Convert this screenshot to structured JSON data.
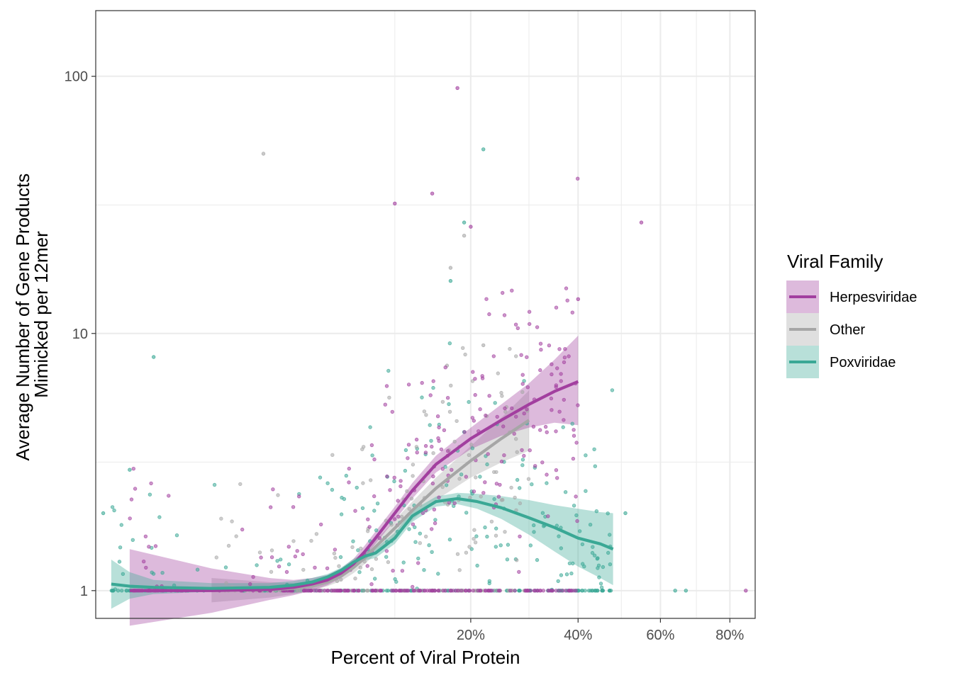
{
  "chart_data": {
    "type": "scatter",
    "xlabel": "Percent of Viral Protein",
    "ylabel_lines": [
      "Average Number of Gene Products",
      "Mimicked per 12mer"
    ],
    "x_scale": "sqrt",
    "y_scale": "log10",
    "xlim": [
      -0.04,
      0.88
    ],
    "ylim": [
      0.78,
      180
    ],
    "x_ticks": [
      {
        "value": 0.2,
        "label": "20%"
      },
      {
        "value": 0.4,
        "label": "40%"
      },
      {
        "value": 0.6,
        "label": "60%"
      },
      {
        "value": 0.8,
        "label": "80%"
      }
    ],
    "x_minor_gridlines": [
      0.1,
      0.3,
      0.5,
      0.7
    ],
    "y_ticks": [
      {
        "value": 1,
        "label": "1"
      },
      {
        "value": 10,
        "label": "10"
      },
      {
        "value": 100,
        "label": "100"
      }
    ],
    "y_minor_gridlines": [
      3.16,
      31.6
    ],
    "grid": true,
    "legend": {
      "title": "Viral Family",
      "position": "right",
      "entries": [
        "Herpesviridae",
        "Other",
        "Poxviridae"
      ]
    },
    "series_colors": {
      "Herpesviridae": "#a23f9f",
      "Other": "#a6a6a6",
      "Poxviridae": "#3aa895"
    },
    "series": [
      {
        "name": "Herpesviridae",
        "smooth": {
          "x": [
            -0.02,
            0.0,
            0.01,
            0.02,
            0.03,
            0.04,
            0.05,
            0.06,
            0.07,
            0.08,
            0.1,
            0.12,
            0.15,
            0.2,
            0.25,
            0.3,
            0.35,
            0.4
          ],
          "y": [
            1.0,
            1.0,
            1.01,
            1.03,
            1.06,
            1.1,
            1.17,
            1.27,
            1.42,
            1.6,
            2.0,
            2.45,
            3.1,
            3.9,
            4.6,
            5.3,
            5.95,
            6.5
          ],
          "lo": [
            0.73,
            0.82,
            0.92,
            0.96,
            1.0,
            1.05,
            1.12,
            1.21,
            1.35,
            1.52,
            1.88,
            2.28,
            2.88,
            3.55,
            4.0,
            4.3,
            4.5,
            4.4
          ],
          "hi": [
            1.45,
            1.22,
            1.12,
            1.1,
            1.12,
            1.15,
            1.22,
            1.33,
            1.5,
            1.7,
            2.12,
            2.62,
            3.35,
            4.3,
            5.3,
            6.4,
            7.9,
            9.8
          ]
        },
        "notable_points": [
          {
            "x": 0.18,
            "y": 90
          },
          {
            "x": 0.145,
            "y": 35
          },
          {
            "x": 0.1,
            "y": 32
          },
          {
            "x": 0.2,
            "y": 26
          },
          {
            "x": 0.4,
            "y": 13.6
          },
          {
            "x": 0.55,
            "y": 27
          },
          {
            "x": 0.85,
            "y": 1.0
          }
        ]
      },
      {
        "name": "Other",
        "smooth": {
          "x": [
            0.0,
            0.01,
            0.02,
            0.03,
            0.04,
            0.05,
            0.06,
            0.07,
            0.08,
            0.1,
            0.12,
            0.15,
            0.2,
            0.25,
            0.3
          ],
          "y": [
            1.0,
            1.01,
            1.02,
            1.04,
            1.08,
            1.14,
            1.23,
            1.34,
            1.48,
            1.75,
            2.05,
            2.5,
            3.2,
            3.9,
            4.6
          ],
          "lo": [
            0.9,
            0.94,
            0.97,
            1.0,
            1.04,
            1.09,
            1.17,
            1.27,
            1.39,
            1.62,
            1.88,
            2.25,
            2.75,
            3.15,
            3.5
          ],
          "hi": [
            1.12,
            1.08,
            1.07,
            1.09,
            1.13,
            1.19,
            1.3,
            1.42,
            1.57,
            1.88,
            2.22,
            2.75,
            3.65,
            4.7,
            6.0
          ]
        },
        "notable_points": [
          {
            "x": 0.008,
            "y": 50
          },
          {
            "x": 0.19,
            "y": 24
          },
          {
            "x": 0.17,
            "y": 18
          },
          {
            "x": 0.22,
            "y": 9
          },
          {
            "x": 0.165,
            "y": 7.5
          }
        ]
      },
      {
        "name": "Poxviridae",
        "smooth": {
          "x": [
            -0.03,
            -0.02,
            -0.01,
            0.0,
            0.01,
            0.02,
            0.03,
            0.04,
            0.05,
            0.06,
            0.07,
            0.08,
            0.1,
            0.12,
            0.15,
            0.18,
            0.21,
            0.25,
            0.3,
            0.35,
            0.4,
            0.45,
            0.48
          ],
          "y": [
            1.06,
            1.04,
            1.03,
            1.02,
            1.03,
            1.05,
            1.08,
            1.13,
            1.2,
            1.29,
            1.36,
            1.4,
            1.6,
            1.95,
            2.22,
            2.28,
            2.22,
            2.1,
            1.92,
            1.76,
            1.6,
            1.52,
            1.45
          ],
          "lo": [
            0.85,
            0.93,
            0.97,
            0.99,
            1.0,
            1.02,
            1.05,
            1.1,
            1.17,
            1.25,
            1.31,
            1.34,
            1.52,
            1.85,
            2.12,
            2.17,
            2.08,
            1.9,
            1.65,
            1.42,
            1.24,
            1.12,
            1.05
          ],
          "hi": [
            1.32,
            1.18,
            1.1,
            1.07,
            1.07,
            1.09,
            1.12,
            1.16,
            1.23,
            1.33,
            1.41,
            1.46,
            1.68,
            2.05,
            2.32,
            2.4,
            2.38,
            2.33,
            2.25,
            2.15,
            2.08,
            2.02,
            2.0
          ]
        },
        "notable_points": [
          {
            "x": 0.22,
            "y": 52
          },
          {
            "x": 0.19,
            "y": 27
          },
          {
            "x": 0.17,
            "y": 16
          },
          {
            "x": -0.035,
            "y": 2.0
          },
          {
            "x": -0.02,
            "y": 2.95
          },
          {
            "x": -0.01,
            "y": 8.1
          },
          {
            "x": 0.51,
            "y": 2.0
          },
          {
            "x": 0.64,
            "y": 1.0
          },
          {
            "x": 0.67,
            "y": 1.0
          }
        ]
      }
    ]
  }
}
